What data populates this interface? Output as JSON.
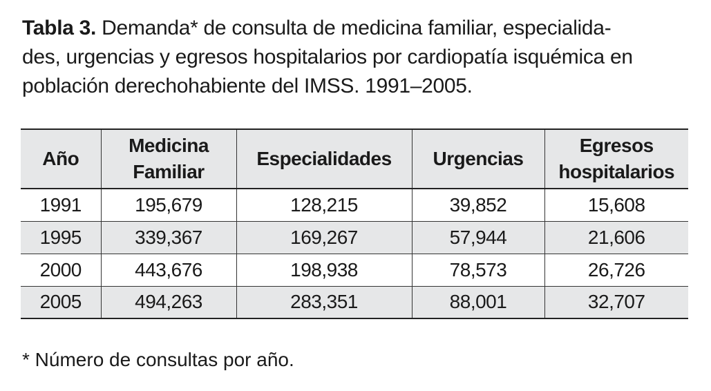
{
  "caption": {
    "label": "Tabla 3.",
    "line1_rest": " Demanda* de consulta de medicina familiar, especialida-",
    "line2": "des, urgencias y egresos hospitalarios por cardiopatía isquémica en",
    "line3": "población derechohabiente del IMSS. 1991–2005."
  },
  "table": {
    "headers": {
      "year": "Año",
      "mf_line1": "Medicina",
      "mf_line2": "Familiar",
      "especialidades": "Especialidades",
      "urgencias": "Urgencias",
      "egr_line1": "Egresos",
      "egr_line2": "hospitalarios"
    },
    "rows": [
      {
        "year": "1991",
        "medicina_familiar": "195,679",
        "especialidades": "128,215",
        "urgencias": "39,852",
        "egresos": "15,608"
      },
      {
        "year": "1995",
        "medicina_familiar": "339,367",
        "especialidades": "169,267",
        "urgencias": "57,944",
        "egresos": "21,606"
      },
      {
        "year": "2000",
        "medicina_familiar": "443,676",
        "especialidades": "198,938",
        "urgencias": "78,573",
        "egresos": "26,726"
      },
      {
        "year": "2005",
        "medicina_familiar": "494,263",
        "especialidades": "283,351",
        "urgencias": "88,001",
        "egresos": "32,707"
      }
    ]
  },
  "footnote": "* Número de consultas por año."
}
